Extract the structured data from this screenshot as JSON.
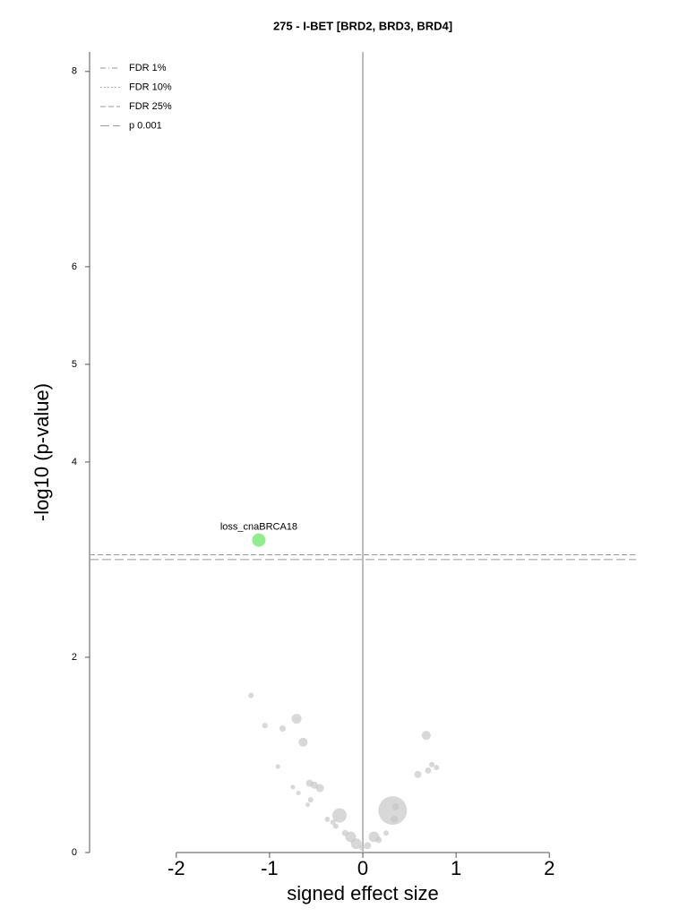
{
  "chart_data": {
    "type": "scatter",
    "title": "275 - I-BET [BRD2, BRD3, BRD4]",
    "xlabel": "signed effect size",
    "ylabel": "-log10 (p-value)",
    "xlim": [
      -2.93,
      2.93
    ],
    "ylim": [
      0,
      8.2
    ],
    "xticks": [
      -2,
      -1,
      0,
      1,
      2
    ],
    "yticks": [
      0,
      2,
      4,
      5,
      6,
      8
    ],
    "series": [
      {
        "color": "#c8c8c8",
        "x": [
          -1.2,
          -1.05,
          -0.86,
          -0.71,
          -0.64,
          -0.91,
          -0.57,
          -0.52,
          -0.46,
          -0.75,
          -0.69,
          -0.56,
          -0.59,
          -0.25,
          -0.38,
          -0.32,
          -0.29,
          -0.19,
          -0.13,
          -0.07,
          -0.01,
          0.05,
          0.12,
          0.17,
          0.25,
          0.32,
          0.35,
          0.34,
          0.68,
          0.59,
          0.7,
          0.74,
          0.79
        ],
        "values": [
          1.61,
          1.3,
          1.27,
          1.37,
          1.13,
          0.88,
          0.71,
          0.69,
          0.66,
          0.67,
          0.61,
          0.54,
          0.49,
          0.38,
          0.34,
          0.31,
          0.27,
          0.2,
          0.16,
          0.09,
          0.05,
          0.07,
          0.16,
          0.13,
          0.2,
          0.43,
          0.47,
          0.34,
          1.2,
          0.8,
          0.84,
          0.9,
          0.87
        ],
        "sizes": [
          3,
          3,
          3.5,
          5.5,
          5,
          2.5,
          4,
          4,
          4.5,
          2.5,
          2.5,
          3,
          2.5,
          8,
          3,
          3,
          3,
          3.5,
          6,
          6,
          3,
          4,
          6,
          3.5,
          3,
          16,
          4,
          4,
          5,
          4,
          3.5,
          3,
          3
        ]
      },
      {
        "color": "#90ee90",
        "x": [
          -1.115
        ],
        "values": [
          3.2
        ],
        "sizes": [
          7.5
        ],
        "labels": [
          "loss_cnaBRCA18"
        ]
      }
    ],
    "thresholds": [
      {
        "name": "FDR 1%",
        "style": "dashdot"
      },
      {
        "name": "FDR 10%",
        "style": "dotted"
      },
      {
        "name": "FDR 25%",
        "style": "dashed",
        "value": 3.05
      },
      {
        "name": "p 0.001",
        "style": "longdash",
        "value": 3.0
      }
    ]
  }
}
